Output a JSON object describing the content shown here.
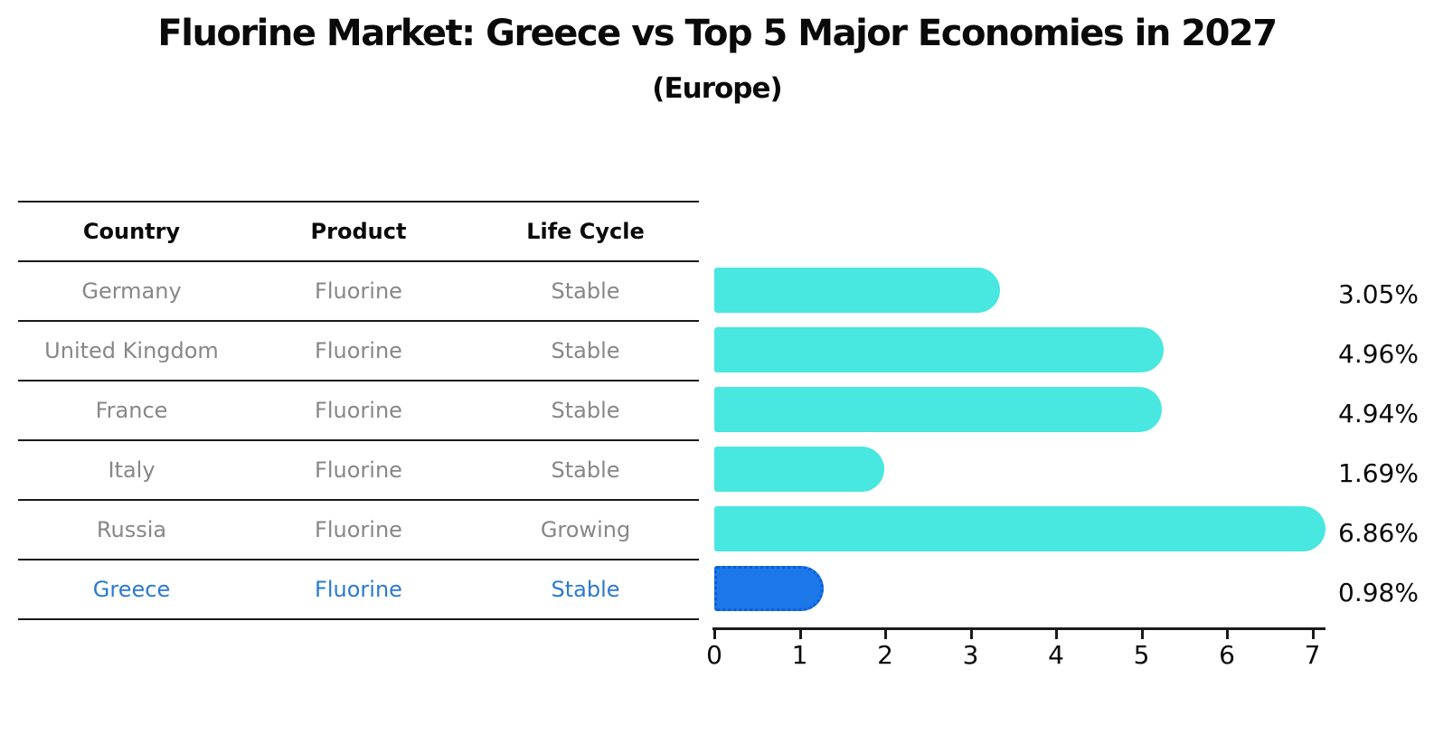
{
  "title": "Fluorine Market: Greece vs Top 5 Major Economies in 2027",
  "subtitle": "(Europe)",
  "table": {
    "headers": [
      "Country",
      "Product",
      "Life Cycle"
    ],
    "rows": [
      {
        "country": "Germany",
        "product": "Fluorine",
        "life_cycle": "Stable",
        "highlight": false
      },
      {
        "country": "United Kingdom",
        "product": "Fluorine",
        "life_cycle": "Stable",
        "highlight": false
      },
      {
        "country": "France",
        "product": "Fluorine",
        "life_cycle": "Stable",
        "highlight": false
      },
      {
        "country": "Italy",
        "product": "Fluorine",
        "life_cycle": "Stable",
        "highlight": false
      },
      {
        "country": "Russia",
        "product": "Fluorine",
        "life_cycle": "Growing",
        "highlight": false
      },
      {
        "country": "Greece",
        "product": "Fluorine",
        "life_cycle": "Stable",
        "highlight": true
      }
    ]
  },
  "chart_data": {
    "type": "bar",
    "orientation": "horizontal",
    "title": "Fluorine Market: Greece vs Top 5 Major Economies in 2027",
    "subtitle": "(Europe)",
    "categories": [
      "Germany",
      "United Kingdom",
      "France",
      "Italy",
      "Russia",
      "Greece"
    ],
    "values": [
      3.05,
      4.96,
      4.94,
      1.69,
      6.86,
      0.98
    ],
    "value_labels": [
      "3.05%",
      "4.96%",
      "4.94%",
      "1.69%",
      "6.86%",
      "0.98%"
    ],
    "x_tick_labels": [
      "0",
      "1",
      "2",
      "3",
      "4",
      "5",
      "6",
      "7"
    ],
    "xlim": [
      0,
      7
    ],
    "grid": false,
    "legend": false,
    "bar_color": "#48e7e0",
    "highlight_bar_color": "#1c77e8",
    "highlight_bar_border_color": "#0d5fd6",
    "highlight_text_color": "#2b7ace",
    "text_color": "#878787",
    "highlight_index": 5
  }
}
